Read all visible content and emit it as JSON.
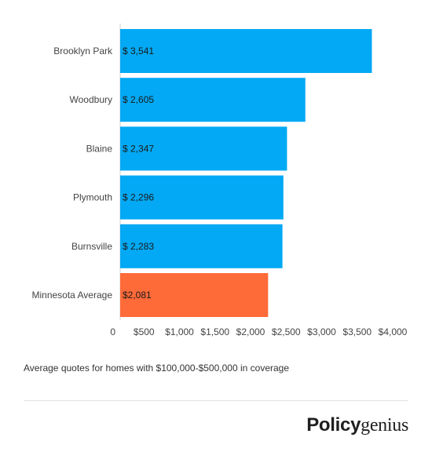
{
  "chart_data": {
    "type": "bar",
    "orientation": "horizontal",
    "categories": [
      "Brooklyn Park",
      "Woodbury",
      "Blaine",
      "Plymouth",
      "Burnsville",
      "Minnesota Average"
    ],
    "values": [
      3541,
      2605,
      2347,
      2296,
      2283,
      2081
    ],
    "data_labels": [
      "$ 3,541",
      "$ 2,605",
      "$ 2,347",
      "$ 2,296",
      "$ 2,283",
      "$2,081"
    ],
    "bar_colors": [
      "#03a9f4",
      "#03a9f4",
      "#03a9f4",
      "#03a9f4",
      "#03a9f4",
      "#ff6a39"
    ],
    "xlim": [
      0,
      4000
    ],
    "x_ticks": [
      0,
      500,
      1000,
      1500,
      2000,
      2500,
      3000,
      3500,
      4000
    ],
    "x_tick_labels": [
      "0",
      "$500",
      "$1,000",
      "$1,500",
      "$2,000",
      "$2,500",
      "$3,000",
      "$3,500",
      "$4,000"
    ],
    "grid": false,
    "legend": "none"
  },
  "footnote": "Average quotes for homes with $100,000-$500,000 in coverage",
  "logo": {
    "bold_part": "Policy",
    "serif_part": "genius"
  }
}
